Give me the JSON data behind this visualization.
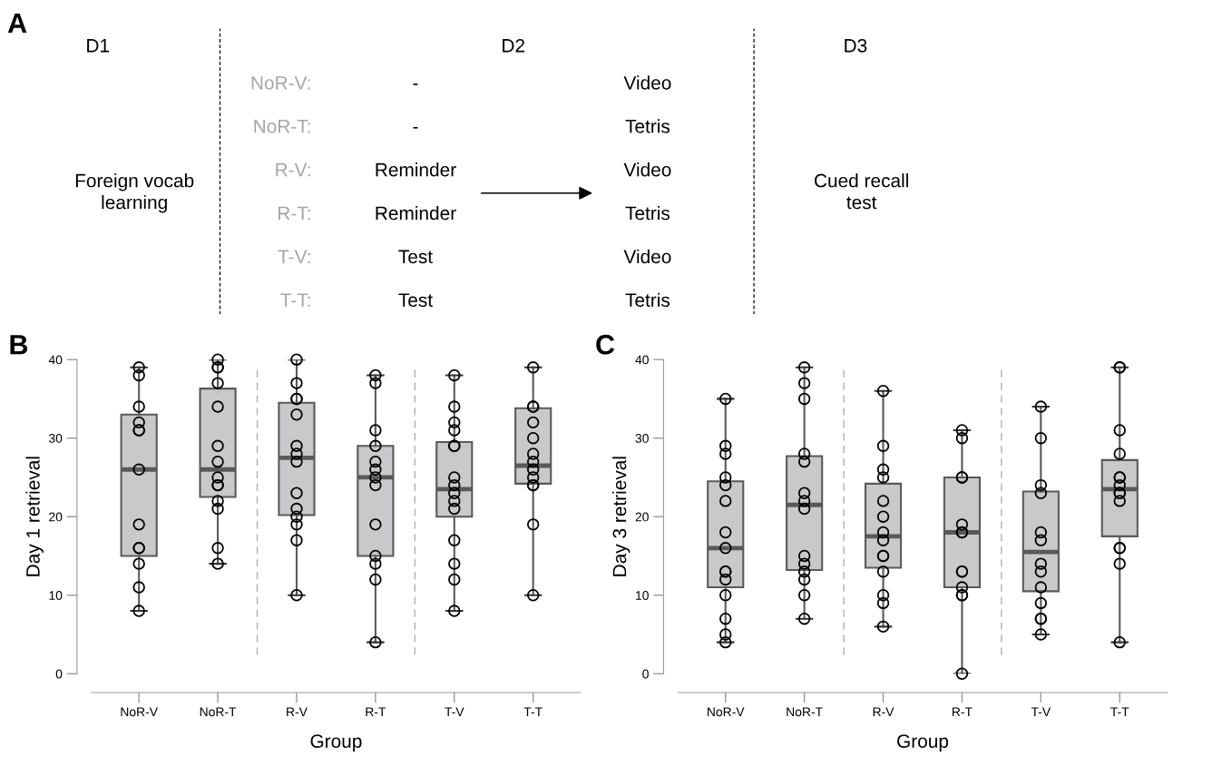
{
  "chart_data": [
    {
      "type": "other",
      "annotations": [
        "A",
        "D1",
        "D2",
        "D3",
        "NoR-V:",
        "-",
        "Video",
        "NoR-T:",
        "-",
        "Tetris",
        "R-V:",
        "Reminder",
        "Video",
        "R-T:",
        "Reminder",
        "Tetris",
        "T-V:",
        "Test",
        "Video",
        "T-T:",
        "Test",
        "Tetris",
        "Foreign vocab\nlearning",
        "Cued recall\ntest"
      ]
    },
    {
      "type": "box",
      "annotations": [
        "B"
      ],
      "xlabel": "Group",
      "ylabel": "Day 1 retrieval",
      "categories": [
        "NoR-V",
        "NoR-T",
        "R-V",
        "R-T",
        "T-V",
        "T-T"
      ],
      "color": "#c8c9cb",
      "ylim": [
        0,
        40
      ],
      "yticks": [
        0,
        10,
        20,
        30,
        40
      ],
      "grid": false,
      "boxes": [
        {
          "low": 8,
          "q1": 15,
          "median": 26,
          "q3": 33,
          "high": 39
        },
        {
          "low": 14,
          "q1": 22.5,
          "median": 26,
          "q3": 36.3,
          "high": 40
        },
        {
          "low": 10,
          "q1": 20.2,
          "median": 27.5,
          "q3": 34.5,
          "high": 40
        },
        {
          "low": 4,
          "q1": 15,
          "median": 25,
          "q3": 29,
          "high": 38
        },
        {
          "low": 8,
          "q1": 20,
          "median": 23.5,
          "q3": 29.5,
          "high": 38
        },
        {
          "low": 10,
          "q1": 24.2,
          "median": 26.5,
          "q3": 33.8,
          "high": 39
        }
      ],
      "series": [
        {
          "type": "scatter",
          "color": "#000000",
          "marker": "circle",
          "x": [
            "NoR-V",
            "NoR-V",
            "NoR-V",
            "NoR-V",
            "NoR-V",
            "NoR-V",
            "NoR-V",
            "NoR-V",
            "NoR-V",
            "NoR-V",
            "NoR-V",
            "NoR-V",
            "NoR-V",
            "NoR-T",
            "NoR-T",
            "NoR-T",
            "NoR-T",
            "NoR-T",
            "NoR-T",
            "NoR-T",
            "NoR-T",
            "NoR-T",
            "NoR-T",
            "NoR-T",
            "NoR-T",
            "NoR-T",
            "NoR-T",
            "R-V",
            "R-V",
            "R-V",
            "R-V",
            "R-V",
            "R-V",
            "R-V",
            "R-V",
            "R-V",
            "R-V",
            "R-V",
            "R-V",
            "R-V",
            "R-V",
            "R-T",
            "R-T",
            "R-T",
            "R-T",
            "R-T",
            "R-T",
            "R-T",
            "R-T",
            "R-T",
            "R-T",
            "R-T",
            "R-T",
            "R-T",
            "T-V",
            "T-V",
            "T-V",
            "T-V",
            "T-V",
            "T-V",
            "T-V",
            "T-V",
            "T-V",
            "T-V",
            "T-V",
            "T-V",
            "T-V",
            "T-V",
            "T-V",
            "T-T",
            "T-T",
            "T-T",
            "T-T",
            "T-T",
            "T-T",
            "T-T",
            "T-T",
            "T-T",
            "T-T",
            "T-T",
            "T-T",
            "T-T"
          ],
          "values": [
            39,
            38,
            34,
            32,
            31,
            31,
            26,
            19,
            16,
            16,
            14,
            11,
            8,
            40,
            39,
            39,
            37,
            34,
            29,
            27,
            25,
            24,
            24,
            22,
            21,
            16,
            14,
            40,
            37,
            35,
            35,
            33,
            29,
            28,
            27,
            23,
            21,
            20,
            19,
            17,
            10,
            38,
            37,
            31,
            29,
            27,
            26,
            25,
            24,
            19,
            15,
            14,
            12,
            4,
            38,
            34,
            32,
            31,
            29,
            29,
            25,
            24,
            23,
            22,
            21,
            17,
            14,
            12,
            8,
            39,
            34,
            34,
            32,
            30,
            28,
            27,
            26,
            25,
            24,
            24,
            19,
            10
          ]
        }
      ]
    },
    {
      "type": "box",
      "annotations": [
        "C"
      ],
      "xlabel": "Group",
      "ylabel": "Day 3 retrieval",
      "categories": [
        "NoR-V",
        "NoR-T",
        "R-V",
        "R-T",
        "T-V",
        "T-T"
      ],
      "color": "#c8c9cb",
      "ylim": [
        0,
        40
      ],
      "yticks": [
        0,
        10,
        20,
        30,
        40
      ],
      "grid": false,
      "boxes": [
        {
          "low": 4,
          "q1": 11,
          "median": 16,
          "q3": 24.5,
          "high": 35
        },
        {
          "low": 7,
          "q1": 13.2,
          "median": 21.5,
          "q3": 27.7,
          "high": 39
        },
        {
          "low": 6,
          "q1": 13.5,
          "median": 17.5,
          "q3": 24.2,
          "high": 36
        },
        {
          "low": 0,
          "q1": 11,
          "median": 18,
          "q3": 25,
          "high": 31
        },
        {
          "low": 5,
          "q1": 10.5,
          "median": 15.5,
          "q3": 23.2,
          "high": 34
        },
        {
          "low": 4,
          "q1": 17.5,
          "median": 23.5,
          "q3": 27.2,
          "high": 39
        }
      ],
      "series": [
        {
          "type": "scatter",
          "color": "#000000",
          "marker": "circle",
          "x": [
            "NoR-V",
            "NoR-V",
            "NoR-V",
            "NoR-V",
            "NoR-V",
            "NoR-V",
            "NoR-V",
            "NoR-V",
            "NoR-V",
            "NoR-V",
            "NoR-V",
            "NoR-V",
            "NoR-V",
            "NoR-V",
            "NoR-V",
            "NoR-T",
            "NoR-T",
            "NoR-T",
            "NoR-T",
            "NoR-T",
            "NoR-T",
            "NoR-T",
            "NoR-T",
            "NoR-T",
            "NoR-T",
            "NoR-T",
            "NoR-T",
            "NoR-T",
            "NoR-T",
            "R-V",
            "R-V",
            "R-V",
            "R-V",
            "R-V",
            "R-V",
            "R-V",
            "R-V",
            "R-V",
            "R-V",
            "R-V",
            "R-V",
            "R-V",
            "R-V",
            "R-T",
            "R-T",
            "R-T",
            "R-T",
            "R-T",
            "R-T",
            "R-T",
            "R-T",
            "R-T",
            "R-T",
            "R-T",
            "R-T",
            "R-T",
            "T-V",
            "T-V",
            "T-V",
            "T-V",
            "T-V",
            "T-V",
            "T-V",
            "T-V",
            "T-V",
            "T-V",
            "T-V",
            "T-V",
            "T-V",
            "T-T",
            "T-T",
            "T-T",
            "T-T",
            "T-T",
            "T-T",
            "T-T",
            "T-T",
            "T-T",
            "T-T",
            "T-T",
            "T-T",
            "T-T",
            "T-T"
          ],
          "values": [
            35,
            29,
            28,
            25,
            24,
            22,
            18,
            16,
            13,
            13,
            12,
            10,
            7,
            5,
            4,
            39,
            37,
            35,
            28,
            27,
            23,
            22,
            21,
            15,
            14,
            13,
            12,
            10,
            7,
            36,
            29,
            26,
            25,
            22,
            20,
            18,
            17,
            15,
            15,
            13,
            10,
            9,
            6,
            31,
            30,
            25,
            25,
            19,
            18,
            18,
            13,
            13,
            11,
            10,
            10,
            0,
            34,
            30,
            24,
            23,
            18,
            17,
            14,
            13,
            11,
            9,
            7,
            7,
            5,
            39,
            39,
            31,
            28,
            25,
            25,
            24,
            23,
            23,
            22,
            16,
            16,
            14,
            4
          ]
        }
      ]
    }
  ]
}
